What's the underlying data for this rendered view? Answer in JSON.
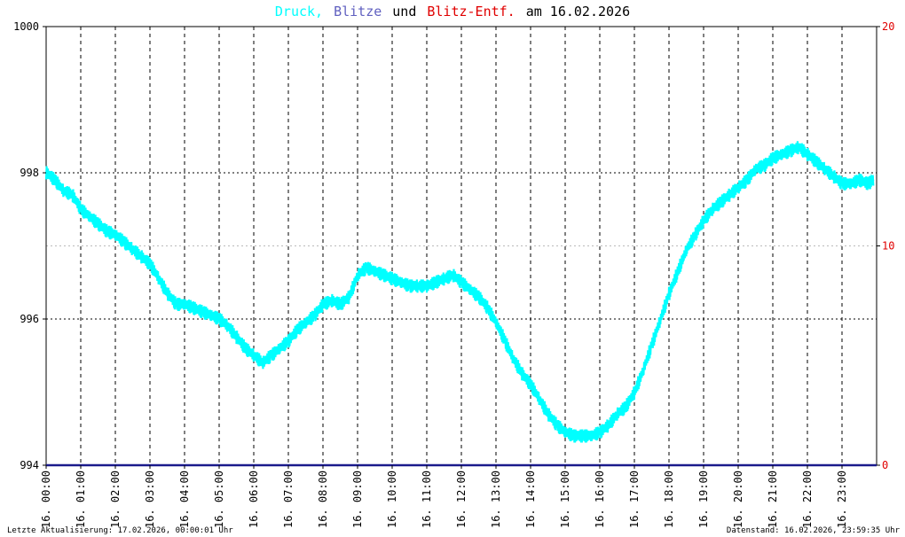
{
  "title": {
    "part1": "Druck,",
    "part2": "Blitze",
    "part3": "und",
    "part4": "Blitz-Entf.",
    "part5": "am 16.02.2026",
    "color1": "#00ffff",
    "color2": "#6060c0",
    "color3": "#000000",
    "color4": "#e00000",
    "color5": "#000000"
  },
  "footer": {
    "left": "Letzte Aktualisierung: 17.02.2026, 00:00:01 Uhr",
    "right": "Datenstand: 16.02.2026, 23:59:35 Uhr"
  },
  "chart_data": {
    "type": "line",
    "left_axis": {
      "ticks": [
        994,
        996,
        998,
        1000
      ],
      "range": [
        994,
        1000
      ],
      "color": "#000000"
    },
    "right_axis": {
      "ticks": [
        0,
        10,
        20
      ],
      "range": [
        0,
        20
      ],
      "color": "#e00000"
    },
    "x_ticks": [
      "16. 00:00",
      "16. 01:00",
      "16. 02:00",
      "16. 03:00",
      "16. 04:00",
      "16. 05:00",
      "16. 06:00",
      "16. 07:00",
      "16. 08:00",
      "16. 09:00",
      "16. 10:00",
      "16. 11:00",
      "16. 12:00",
      "16. 13:00",
      "16. 14:00",
      "16. 15:00",
      "16. 16:00",
      "16. 17:00",
      "16. 18:00",
      "16. 19:00",
      "16. 20:00",
      "16. 21:00",
      "16. 22:00",
      "16. 23:00"
    ],
    "x_range_hours": [
      0,
      24
    ],
    "grid": true,
    "series": [
      {
        "color": "#00ffff",
        "axis": "left",
        "x": [
          0,
          0.25,
          0.5,
          0.75,
          1,
          1.25,
          1.5,
          1.75,
          2,
          2.25,
          2.5,
          2.75,
          3,
          3.25,
          3.5,
          3.75,
          4,
          4.25,
          4.5,
          4.75,
          5,
          5.25,
          5.5,
          5.75,
          6,
          6.25,
          6.5,
          6.75,
          7,
          7.25,
          7.5,
          7.75,
          8,
          8.25,
          8.5,
          8.75,
          9,
          9.25,
          9.5,
          9.75,
          10,
          10.25,
          10.5,
          10.75,
          11,
          11.25,
          11.5,
          11.75,
          12,
          12.25,
          12.5,
          12.75,
          13,
          13.25,
          13.5,
          13.75,
          14,
          14.25,
          14.5,
          14.75,
          15,
          15.25,
          15.5,
          15.75,
          16,
          16.25,
          16.5,
          16.75,
          17,
          17.25,
          17.5,
          17.75,
          18,
          18.25,
          18.5,
          18.75,
          19,
          19.25,
          19.5,
          19.75,
          20,
          20.25,
          20.5,
          20.75,
          21,
          21.25,
          21.5,
          21.75,
          22,
          22.25,
          22.5,
          22.75,
          23,
          23.25,
          23.5,
          23.75,
          23.9
        ],
        "values": [
          998.0,
          997.9,
          997.75,
          997.7,
          997.5,
          997.4,
          997.3,
          997.2,
          997.15,
          997.05,
          996.95,
          996.85,
          996.75,
          996.55,
          996.35,
          996.2,
          996.2,
          996.15,
          996.1,
          996.05,
          996.0,
          995.9,
          995.75,
          995.6,
          995.5,
          995.4,
          995.5,
          995.6,
          995.7,
          995.85,
          995.95,
          996.05,
          996.2,
          996.25,
          996.2,
          996.3,
          996.6,
          996.7,
          996.65,
          996.6,
          996.55,
          996.5,
          996.45,
          996.45,
          996.45,
          996.5,
          996.55,
          996.6,
          996.5,
          996.4,
          996.3,
          996.15,
          995.95,
          995.7,
          995.45,
          995.25,
          995.1,
          994.9,
          994.7,
          994.55,
          994.45,
          994.4,
          994.4,
          994.4,
          994.45,
          994.55,
          994.7,
          994.8,
          995.0,
          995.3,
          995.65,
          996.0,
          996.35,
          996.65,
          996.95,
          997.15,
          997.35,
          997.5,
          997.6,
          997.7,
          997.8,
          997.9,
          998.05,
          998.1,
          998.2,
          998.25,
          998.3,
          998.35,
          998.25,
          998.15,
          998.05,
          997.95,
          997.85,
          997.85,
          997.9,
          997.85,
          997.9
        ]
      },
      {
        "color": "#1a1a8c",
        "axis": "right",
        "x": [
          0,
          24
        ],
        "values": [
          0,
          0
        ]
      }
    ]
  }
}
